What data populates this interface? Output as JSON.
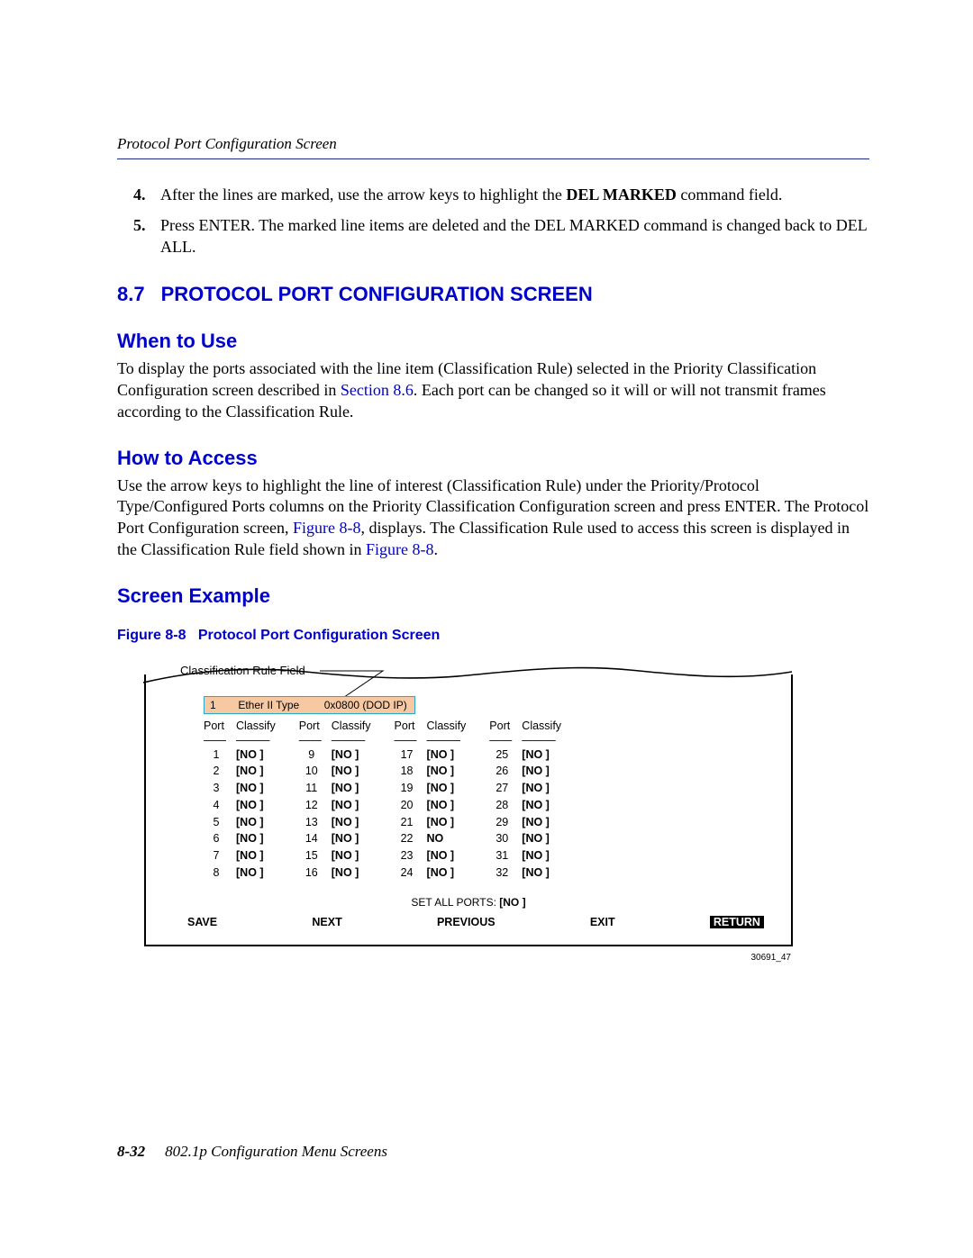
{
  "header": {
    "running_title": "Protocol Port Configuration Screen"
  },
  "steps": [
    {
      "n": 4,
      "pre": "After the lines are marked, use the arrow keys to highlight the ",
      "bold": "DEL MARKED",
      "post": " command field."
    },
    {
      "n": 5,
      "pre": "Press ENTER. The marked line items are deleted and the DEL MARKED command is changed back to DEL ALL.",
      "bold": "",
      "post": ""
    }
  ],
  "section": {
    "number": "8.7",
    "title": "PROTOCOL PORT CONFIGURATION SCREEN"
  },
  "when_to_use": {
    "heading": "When to Use",
    "text_pre": "To display the ports associated with the line item (Classification Rule) selected in the Priority Classification Configuration screen described in ",
    "link": "Section 8.6",
    "text_post": ". Each port can be changed so it will or will not transmit frames according to the Classification Rule."
  },
  "how_to_access": {
    "heading": "How to Access",
    "text_pre": "Use the arrow keys to highlight the line of interest (Classification Rule) under the Priority/Protocol Type/Configured Ports columns on the Priority Classification Configuration screen and press ENTER. The Protocol Port Configuration screen, ",
    "link1": "Figure 8-8",
    "text_mid": ", displays. The Classification Rule used to access this screen is displayed in the Classification Rule field shown in ",
    "link2": "Figure 8-8",
    "text_post": "."
  },
  "screen_example": {
    "heading": "Screen Example"
  },
  "figure": {
    "caption_label": "Figure 8-8",
    "caption_title": "Protocol Port Configuration Screen",
    "callout": "Classification Rule Field",
    "ref": "30691_47"
  },
  "screen": {
    "rule": {
      "num": "1",
      "type": "Ether II Type",
      "value": "0x0800  (DOD IP)"
    },
    "col_headers": {
      "port": "Port",
      "classify": "Classify"
    },
    "dashes": {
      "port": "——",
      "classify": "———"
    },
    "columns": [
      [
        {
          "p": "1",
          "c": "[NO ]"
        },
        {
          "p": "2",
          "c": "[NO ]"
        },
        {
          "p": "3",
          "c": "[NO ]"
        },
        {
          "p": "4",
          "c": "[NO ]"
        },
        {
          "p": "5",
          "c": "[NO ]"
        },
        {
          "p": "6",
          "c": "[NO ]"
        },
        {
          "p": "7",
          "c": "[NO ]"
        },
        {
          "p": "8",
          "c": "[NO ]"
        }
      ],
      [
        {
          "p": "9",
          "c": "[NO ]"
        },
        {
          "p": "10",
          "c": "[NO ]"
        },
        {
          "p": "11",
          "c": "[NO ]"
        },
        {
          "p": "12",
          "c": "[NO ]"
        },
        {
          "p": "13",
          "c": "[NO ]"
        },
        {
          "p": "14",
          "c": "[NO ]"
        },
        {
          "p": "15",
          "c": "[NO ]"
        },
        {
          "p": "16",
          "c": "[NO ]"
        }
      ],
      [
        {
          "p": "17",
          "c": "[NO ]"
        },
        {
          "p": "18",
          "c": "[NO ]"
        },
        {
          "p": "19",
          "c": "[NO ]"
        },
        {
          "p": "20",
          "c": "[NO ]"
        },
        {
          "p": "21",
          "c": "[NO ]"
        },
        {
          "p": "22",
          "c": "NO"
        },
        {
          "p": "23",
          "c": "[NO ]"
        },
        {
          "p": "24",
          "c": "[NO ]"
        }
      ],
      [
        {
          "p": "25",
          "c": "[NO ]"
        },
        {
          "p": "26",
          "c": "[NO ]"
        },
        {
          "p": "27",
          "c": "[NO ]"
        },
        {
          "p": "28",
          "c": "[NO ]"
        },
        {
          "p": "29",
          "c": "[NO ]"
        },
        {
          "p": "30",
          "c": "[NO ]"
        },
        {
          "p": "31",
          "c": "[NO ]"
        },
        {
          "p": "32",
          "c": "[NO ]"
        }
      ]
    ],
    "set_all": {
      "label": "SET ALL PORTS: ",
      "value": "[NO ]"
    },
    "commands": {
      "save": "SAVE",
      "next": "NEXT",
      "previous": "PREVIOUS",
      "exit": "EXIT",
      "return": "RETURN"
    }
  },
  "footer": {
    "page": "8-32",
    "title": "802.1p Configuration Menu Screens"
  }
}
